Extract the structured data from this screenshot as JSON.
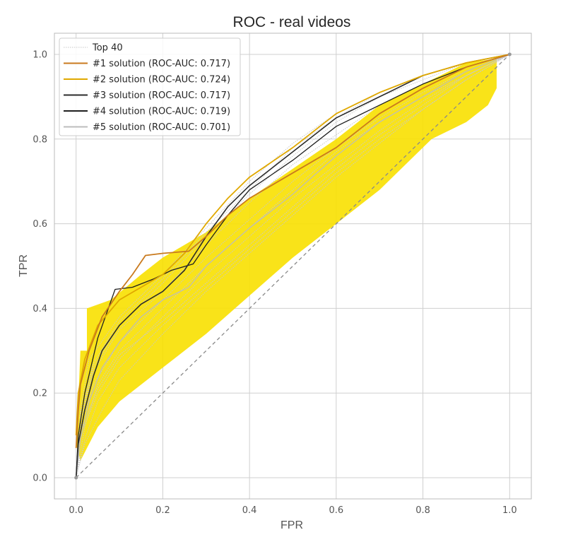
{
  "chart_data": {
    "type": "line",
    "title": "ROC - real videos",
    "xlabel": "FPR",
    "ylabel": "TPR",
    "xlim": [
      -0.05,
      1.05
    ],
    "ylim": [
      -0.05,
      1.05
    ],
    "x_ticks": [
      "0.0",
      "0.2",
      "0.4",
      "0.6",
      "0.8",
      "1.0"
    ],
    "y_ticks": [
      "0.0",
      "0.2",
      "0.4",
      "0.6",
      "0.8",
      "1.0"
    ],
    "grid": true,
    "legend_position": "upper-left",
    "colors": {
      "band": "#f8e000",
      "band_alpha": "0.9",
      "top40": "#c8c8c8",
      "chance": "#8a8a8a",
      "grid": "#cfcfcf",
      "frame": "#bbbbbb",
      "s1": "#c97a1e",
      "s2": "#e0a800",
      "s3": "#2b2b2b",
      "s4": "#1f1f1f",
      "s5": "#bcbcbc"
    },
    "legend": [
      {
        "label": "Top 40",
        "key": "top40",
        "dotted": true
      },
      {
        "label": "#1 solution (ROC-AUC: 0.717)",
        "key": "s1"
      },
      {
        "label": "#2 solution (ROC-AUC: 0.724)",
        "key": "s2"
      },
      {
        "label": "#3 solution (ROC-AUC: 0.717)",
        "key": "s3"
      },
      {
        "label": "#4 solution (ROC-AUC: 0.719)",
        "key": "s4"
      },
      {
        "label": "#5 solution (ROC-AUC: 0.701)",
        "key": "s5"
      }
    ],
    "band": {
      "upper": [
        [
          0.0,
          0.08
        ],
        [
          0.005,
          0.18
        ],
        [
          0.01,
          0.3
        ],
        [
          0.025,
          0.3
        ],
        [
          0.025,
          0.4
        ],
        [
          0.08,
          0.42
        ],
        [
          0.15,
          0.48
        ],
        [
          0.2,
          0.52
        ],
        [
          0.3,
          0.58
        ],
        [
          0.4,
          0.66
        ],
        [
          0.5,
          0.73
        ],
        [
          0.6,
          0.8
        ],
        [
          0.7,
          0.88
        ],
        [
          0.8,
          0.93
        ],
        [
          0.9,
          0.98
        ],
        [
          0.97,
          0.99
        ]
      ],
      "lower": [
        [
          0.97,
          0.92
        ],
        [
          0.95,
          0.88
        ],
        [
          0.9,
          0.84
        ],
        [
          0.82,
          0.8
        ],
        [
          0.7,
          0.68
        ],
        [
          0.6,
          0.6
        ],
        [
          0.5,
          0.52
        ],
        [
          0.4,
          0.43
        ],
        [
          0.3,
          0.34
        ],
        [
          0.2,
          0.26
        ],
        [
          0.1,
          0.18
        ],
        [
          0.05,
          0.12
        ],
        [
          0.02,
          0.06
        ],
        [
          0.01,
          0.04
        ]
      ]
    },
    "chance_line": [
      [
        0,
        0
      ],
      [
        1,
        1
      ]
    ],
    "top40_curves": [
      [
        [
          0,
          0
        ],
        [
          0.01,
          0.12
        ],
        [
          0.04,
          0.22
        ],
        [
          0.1,
          0.32
        ],
        [
          0.2,
          0.42
        ],
        [
          0.3,
          0.52
        ],
        [
          0.4,
          0.61
        ],
        [
          0.5,
          0.7
        ],
        [
          0.6,
          0.78
        ],
        [
          0.7,
          0.85
        ],
        [
          0.8,
          0.91
        ],
        [
          0.9,
          0.96
        ],
        [
          1,
          1
        ]
      ],
      [
        [
          0,
          0
        ],
        [
          0.01,
          0.1
        ],
        [
          0.05,
          0.2
        ],
        [
          0.1,
          0.28
        ],
        [
          0.2,
          0.38
        ],
        [
          0.3,
          0.48
        ],
        [
          0.4,
          0.57
        ],
        [
          0.5,
          0.66
        ],
        [
          0.6,
          0.74
        ],
        [
          0.7,
          0.82
        ],
        [
          0.8,
          0.89
        ],
        [
          0.9,
          0.95
        ],
        [
          1,
          1
        ]
      ],
      [
        [
          0,
          0
        ],
        [
          0.01,
          0.14
        ],
        [
          0.04,
          0.26
        ],
        [
          0.1,
          0.36
        ],
        [
          0.2,
          0.46
        ],
        [
          0.3,
          0.57
        ],
        [
          0.4,
          0.67
        ],
        [
          0.5,
          0.76
        ],
        [
          0.6,
          0.84
        ],
        [
          0.7,
          0.9
        ],
        [
          0.8,
          0.94
        ],
        [
          0.9,
          0.98
        ],
        [
          1,
          1
        ]
      ],
      [
        [
          0,
          0
        ],
        [
          0.02,
          0.12
        ],
        [
          0.05,
          0.22
        ],
        [
          0.1,
          0.3
        ],
        [
          0.2,
          0.4
        ],
        [
          0.3,
          0.5
        ],
        [
          0.4,
          0.59
        ],
        [
          0.5,
          0.68
        ],
        [
          0.6,
          0.77
        ],
        [
          0.7,
          0.84
        ],
        [
          0.8,
          0.9
        ],
        [
          0.9,
          0.95
        ],
        [
          1,
          1
        ]
      ],
      [
        [
          0,
          0
        ],
        [
          0.01,
          0.16
        ],
        [
          0.03,
          0.28
        ],
        [
          0.1,
          0.38
        ],
        [
          0.2,
          0.48
        ],
        [
          0.3,
          0.59
        ],
        [
          0.4,
          0.7
        ],
        [
          0.5,
          0.79
        ],
        [
          0.6,
          0.86
        ],
        [
          0.7,
          0.91
        ],
        [
          0.8,
          0.95
        ],
        [
          0.9,
          0.98
        ],
        [
          1,
          1
        ]
      ],
      [
        [
          0,
          0
        ],
        [
          0.02,
          0.08
        ],
        [
          0.06,
          0.16
        ],
        [
          0.1,
          0.23
        ],
        [
          0.2,
          0.34
        ],
        [
          0.3,
          0.44
        ],
        [
          0.4,
          0.53
        ],
        [
          0.5,
          0.62
        ],
        [
          0.6,
          0.71
        ],
        [
          0.7,
          0.79
        ],
        [
          0.8,
          0.87
        ],
        [
          0.9,
          0.94
        ],
        [
          1,
          1
        ]
      ],
      [
        [
          0,
          0
        ],
        [
          0.01,
          0.13
        ],
        [
          0.04,
          0.25
        ],
        [
          0.1,
          0.35
        ],
        [
          0.2,
          0.44
        ],
        [
          0.3,
          0.55
        ],
        [
          0.4,
          0.65
        ],
        [
          0.5,
          0.74
        ],
        [
          0.6,
          0.81
        ],
        [
          0.7,
          0.88
        ],
        [
          0.8,
          0.93
        ],
        [
          0.9,
          0.97
        ],
        [
          1,
          1
        ]
      ],
      [
        [
          0,
          0
        ],
        [
          0.01,
          0.11
        ],
        [
          0.05,
          0.21
        ],
        [
          0.1,
          0.29
        ],
        [
          0.2,
          0.37
        ],
        [
          0.3,
          0.46
        ],
        [
          0.4,
          0.55
        ],
        [
          0.5,
          0.64
        ],
        [
          0.6,
          0.73
        ],
        [
          0.7,
          0.81
        ],
        [
          0.8,
          0.88
        ],
        [
          0.9,
          0.95
        ],
        [
          1,
          1
        ]
      ],
      [
        [
          0,
          0
        ],
        [
          0.01,
          0.15
        ],
        [
          0.04,
          0.27
        ],
        [
          0.1,
          0.37
        ],
        [
          0.2,
          0.47
        ],
        [
          0.3,
          0.58
        ],
        [
          0.4,
          0.68
        ],
        [
          0.5,
          0.78
        ],
        [
          0.6,
          0.85
        ],
        [
          0.7,
          0.91
        ],
        [
          0.8,
          0.95
        ],
        [
          0.9,
          0.98
        ],
        [
          1,
          1
        ]
      ],
      [
        [
          0,
          0
        ],
        [
          0.02,
          0.09
        ],
        [
          0.05,
          0.18
        ],
        [
          0.1,
          0.26
        ],
        [
          0.2,
          0.36
        ],
        [
          0.3,
          0.45
        ],
        [
          0.4,
          0.54
        ],
        [
          0.5,
          0.63
        ],
        [
          0.6,
          0.72
        ],
        [
          0.7,
          0.8
        ],
        [
          0.8,
          0.87
        ],
        [
          0.9,
          0.94
        ],
        [
          1,
          1
        ]
      ]
    ],
    "series": [
      {
        "key": "s1",
        "points": [
          [
            0,
            0.07
          ],
          [
            0.005,
            0.16
          ],
          [
            0.01,
            0.22
          ],
          [
            0.03,
            0.3
          ],
          [
            0.06,
            0.38
          ],
          [
            0.1,
            0.44
          ],
          [
            0.13,
            0.48
          ],
          [
            0.16,
            0.525
          ],
          [
            0.2,
            0.53
          ],
          [
            0.26,
            0.535
          ],
          [
            0.3,
            0.57
          ],
          [
            0.35,
            0.62
          ],
          [
            0.4,
            0.66
          ],
          [
            0.5,
            0.72
          ],
          [
            0.6,
            0.78
          ],
          [
            0.7,
            0.86
          ],
          [
            0.8,
            0.92
          ],
          [
            0.9,
            0.97
          ],
          [
            1,
            1
          ]
        ]
      },
      {
        "key": "s2",
        "points": [
          [
            0,
            0.1
          ],
          [
            0.005,
            0.2
          ],
          [
            0.02,
            0.28
          ],
          [
            0.05,
            0.36
          ],
          [
            0.1,
            0.42
          ],
          [
            0.15,
            0.45
          ],
          [
            0.2,
            0.48
          ],
          [
            0.25,
            0.53
          ],
          [
            0.3,
            0.6
          ],
          [
            0.35,
            0.66
          ],
          [
            0.4,
            0.71
          ],
          [
            0.5,
            0.78
          ],
          [
            0.6,
            0.86
          ],
          [
            0.7,
            0.91
          ],
          [
            0.8,
            0.95
          ],
          [
            0.9,
            0.98
          ],
          [
            1,
            1
          ]
        ]
      },
      {
        "key": "s3",
        "points": [
          [
            0,
            0
          ],
          [
            0.005,
            0.08
          ],
          [
            0.02,
            0.16
          ],
          [
            0.04,
            0.24
          ],
          [
            0.06,
            0.3
          ],
          [
            0.1,
            0.36
          ],
          [
            0.15,
            0.41
          ],
          [
            0.2,
            0.44
          ],
          [
            0.25,
            0.49
          ],
          [
            0.3,
            0.57
          ],
          [
            0.35,
            0.64
          ],
          [
            0.4,
            0.69
          ],
          [
            0.5,
            0.77
          ],
          [
            0.6,
            0.85
          ],
          [
            0.7,
            0.9
          ],
          [
            0.8,
            0.95
          ],
          [
            0.9,
            0.98
          ],
          [
            1,
            1
          ]
        ]
      },
      {
        "key": "s4",
        "points": [
          [
            0,
            0
          ],
          [
            0.005,
            0.1
          ],
          [
            0.02,
            0.2
          ],
          [
            0.05,
            0.33
          ],
          [
            0.09,
            0.445
          ],
          [
            0.13,
            0.45
          ],
          [
            0.18,
            0.47
          ],
          [
            0.22,
            0.49
          ],
          [
            0.27,
            0.505
          ],
          [
            0.3,
            0.55
          ],
          [
            0.35,
            0.62
          ],
          [
            0.4,
            0.68
          ],
          [
            0.5,
            0.75
          ],
          [
            0.6,
            0.83
          ],
          [
            0.7,
            0.88
          ],
          [
            0.8,
            0.93
          ],
          [
            0.9,
            0.97
          ],
          [
            1,
            1
          ]
        ]
      },
      {
        "key": "s5",
        "points": [
          [
            0,
            0
          ],
          [
            0.01,
            0.09
          ],
          [
            0.03,
            0.18
          ],
          [
            0.06,
            0.26
          ],
          [
            0.1,
            0.32
          ],
          [
            0.15,
            0.38
          ],
          [
            0.2,
            0.42
          ],
          [
            0.26,
            0.45
          ],
          [
            0.3,
            0.5
          ],
          [
            0.4,
            0.59
          ],
          [
            0.5,
            0.67
          ],
          [
            0.6,
            0.76
          ],
          [
            0.7,
            0.84
          ],
          [
            0.8,
            0.9
          ],
          [
            0.9,
            0.96
          ],
          [
            1,
            1
          ]
        ]
      }
    ]
  }
}
